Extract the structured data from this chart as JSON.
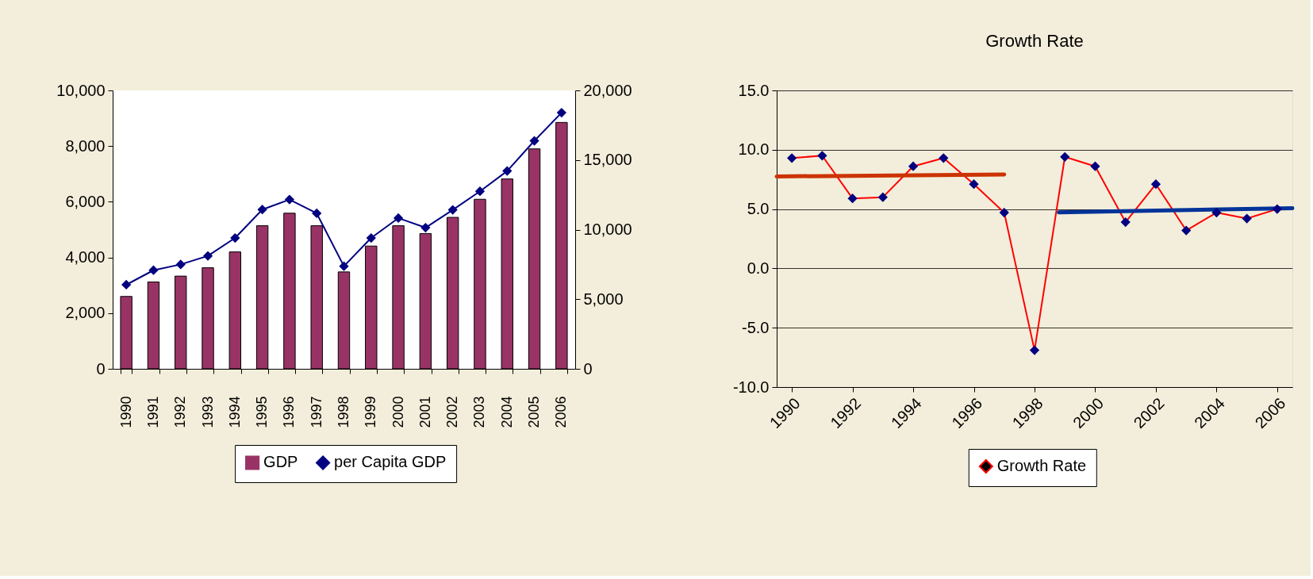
{
  "chart_data": [
    {
      "type": "bar",
      "categories": [
        "1990",
        "1991",
        "1992",
        "1993",
        "1994",
        "1995",
        "1996",
        "1997",
        "1998",
        "1999",
        "2000",
        "2001",
        "2002",
        "2003",
        "2004",
        "2005",
        "2006"
      ],
      "series": [
        {
          "name": "GDP",
          "color": "#993366",
          "values": [
            2600,
            3120,
            3330,
            3630,
            4200,
            5140,
            5590,
            5140,
            3480,
            4410,
            5140,
            4860,
            5440,
            6090,
            6820,
            7900,
            8850
          ]
        },
        {
          "name": "per Capita GDP",
          "type": "line",
          "axis": "y2",
          "color": "#000080",
          "values": [
            6040,
            7080,
            7500,
            8110,
            9400,
            11440,
            12160,
            11170,
            7370,
            9400,
            10830,
            10140,
            11420,
            12750,
            14210,
            16380,
            18400
          ]
        }
      ],
      "ylim": [
        0,
        10000
      ],
      "yticks": [
        0,
        {
          "value": 2000,
          "label": "2,000"
        },
        {
          "value": 4000,
          "label": "4,000"
        },
        {
          "value": 6000,
          "label": "6,000"
        },
        {
          "value": 8000,
          "label": "8,000"
        },
        {
          "value": 10000,
          "label": "10,000"
        }
      ],
      "y2lim": [
        0,
        20000
      ],
      "y2ticks": [
        0,
        {
          "value": 5000,
          "label": "5,000"
        },
        {
          "value": 10000,
          "label": "10,000"
        },
        {
          "value": 15000,
          "label": "15,000"
        },
        {
          "value": 20000,
          "label": "20,000"
        }
      ],
      "marker": "diamond",
      "legend": "bottom"
    },
    {
      "type": "line",
      "title": "Growth Rate",
      "x": [
        1990,
        1991,
        1992,
        1993,
        1994,
        1995,
        1996,
        1997,
        1998,
        1999,
        2000,
        2001,
        2002,
        2003,
        2004,
        2005,
        2006
      ],
      "series": [
        {
          "name": "Growth Rate",
          "color": "#ff0000",
          "colors": [
            "#000080",
            "#000080",
            "#000080",
            "#000080",
            "#000080",
            "#000080",
            "#000080",
            "#000080",
            "#000080",
            "#000080",
            "#000080",
            "#000080",
            "#000080",
            "#000080",
            "#000080",
            "#000080",
            "#000080"
          ],
          "values": [
            9.3,
            9.5,
            5.9,
            6.0,
            8.6,
            9.3,
            7.1,
            4.7,
            -6.9,
            9.4,
            8.6,
            3.9,
            7.1,
            3.2,
            4.7,
            4.2,
            5.0
          ]
        },
        {
          "type": "line",
          "marker": "none",
          "color": "#cc3300",
          "x": [
            1989.5,
            1997.0
          ],
          "values": [
            7.75,
            7.92
          ]
        },
        {
          "type": "line",
          "marker": "none",
          "color": "#003399",
          "x": [
            1998.8,
            2006.5
          ],
          "values": [
            4.73,
            5.07
          ]
        }
      ],
      "xlim": [
        1989.5,
        2006.5
      ],
      "xticks": [
        1990,
        1992,
        1994,
        1996,
        1998,
        2000,
        2002,
        2004,
        2006
      ],
      "ylim": [
        -10,
        15
      ],
      "yticks": [
        {
          "value": -10,
          "label": "-10.0"
        },
        {
          "value": -5,
          "label": "-5.0"
        },
        {
          "value": 0,
          "label": "0.0"
        },
        {
          "value": 5,
          "label": "5.0"
        },
        {
          "value": 10,
          "label": "10.0"
        },
        {
          "value": 15,
          "label": "15.0"
        }
      ],
      "grid": "y",
      "legend": "bottom",
      "marker": "diamond"
    }
  ]
}
